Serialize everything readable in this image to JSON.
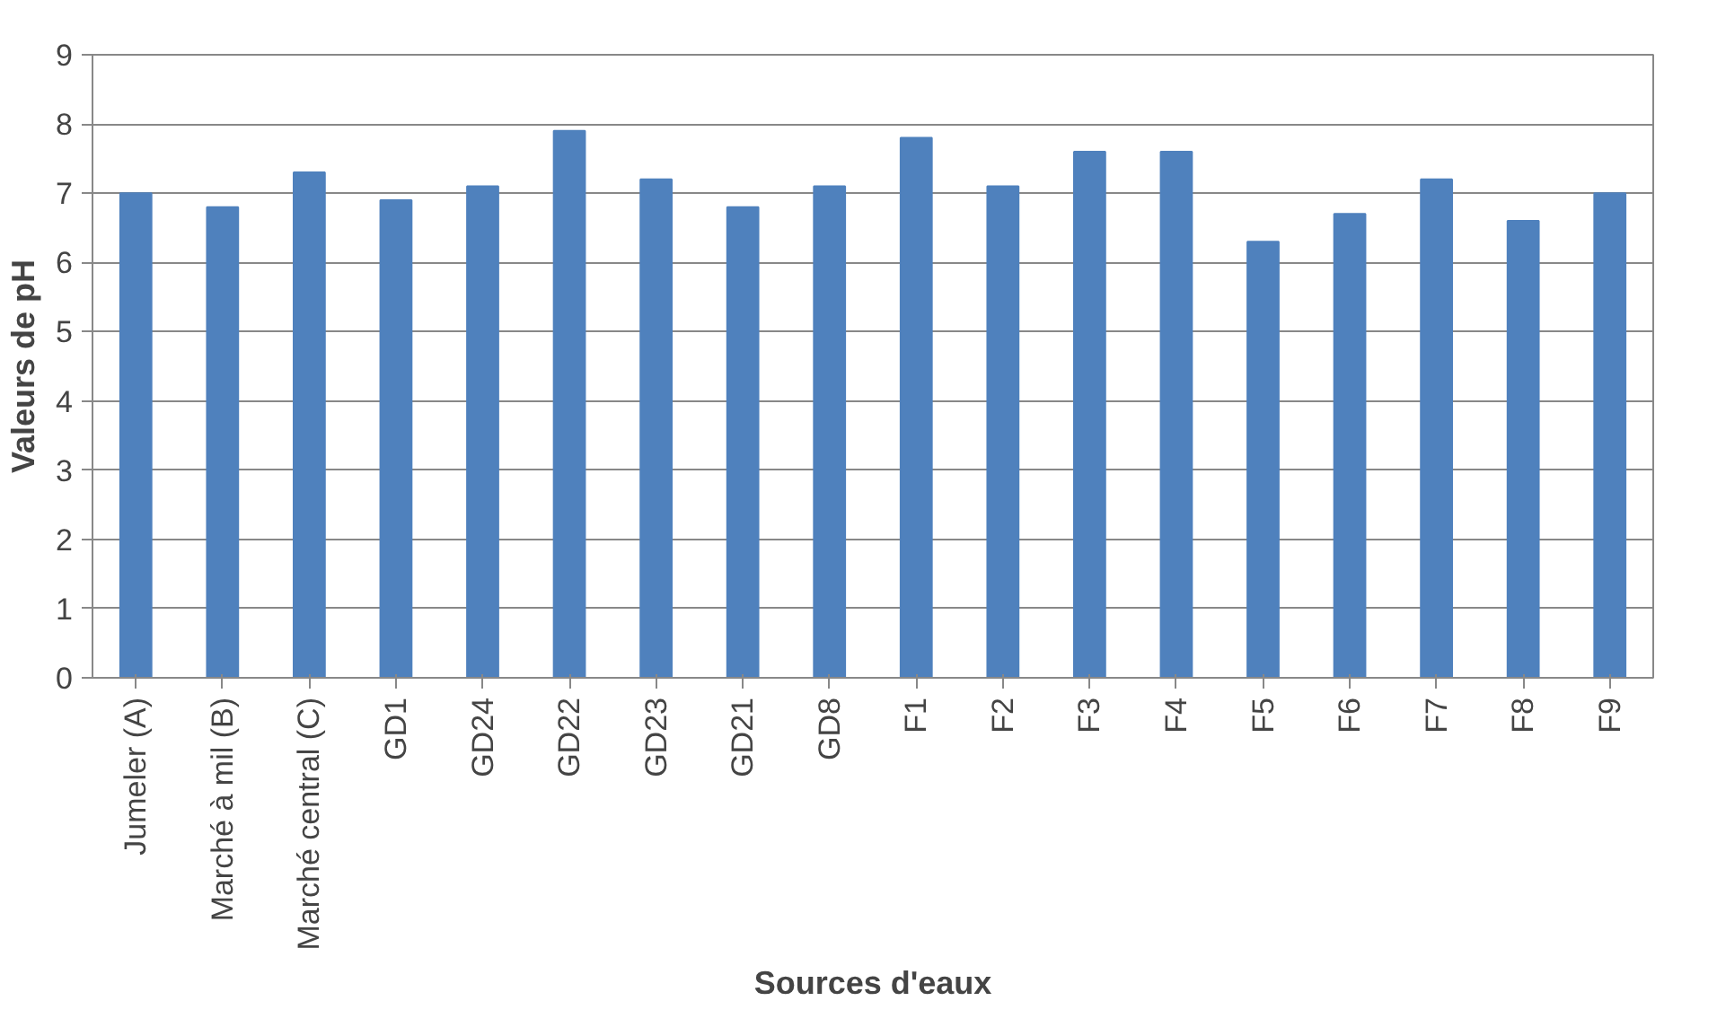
{
  "chart_data": {
    "type": "bar",
    "xlabel": "Sources d'eaux",
    "ylabel": "Valeurs de pH",
    "categories": [
      "Jumeler (A)",
      "Marché à mil (B)",
      "Marché central (C)",
      "GD1",
      "GD24",
      "GD22",
      "GD23",
      "GD21",
      "GD8",
      "F1",
      "F2",
      "F3",
      "F4",
      "F5",
      "F6",
      "F7",
      "F8",
      "F9"
    ],
    "values": [
      7.0,
      6.8,
      7.3,
      6.9,
      7.1,
      7.9,
      7.2,
      6.8,
      7.1,
      7.8,
      7.1,
      7.6,
      7.6,
      6.3,
      6.7,
      7.2,
      6.6,
      7.0
    ],
    "color": "#4f81bd",
    "ylim": [
      0,
      9
    ],
    "yticks": [
      0,
      1,
      2,
      3,
      4,
      5,
      6,
      7,
      8,
      9
    ],
    "grid": "y"
  }
}
